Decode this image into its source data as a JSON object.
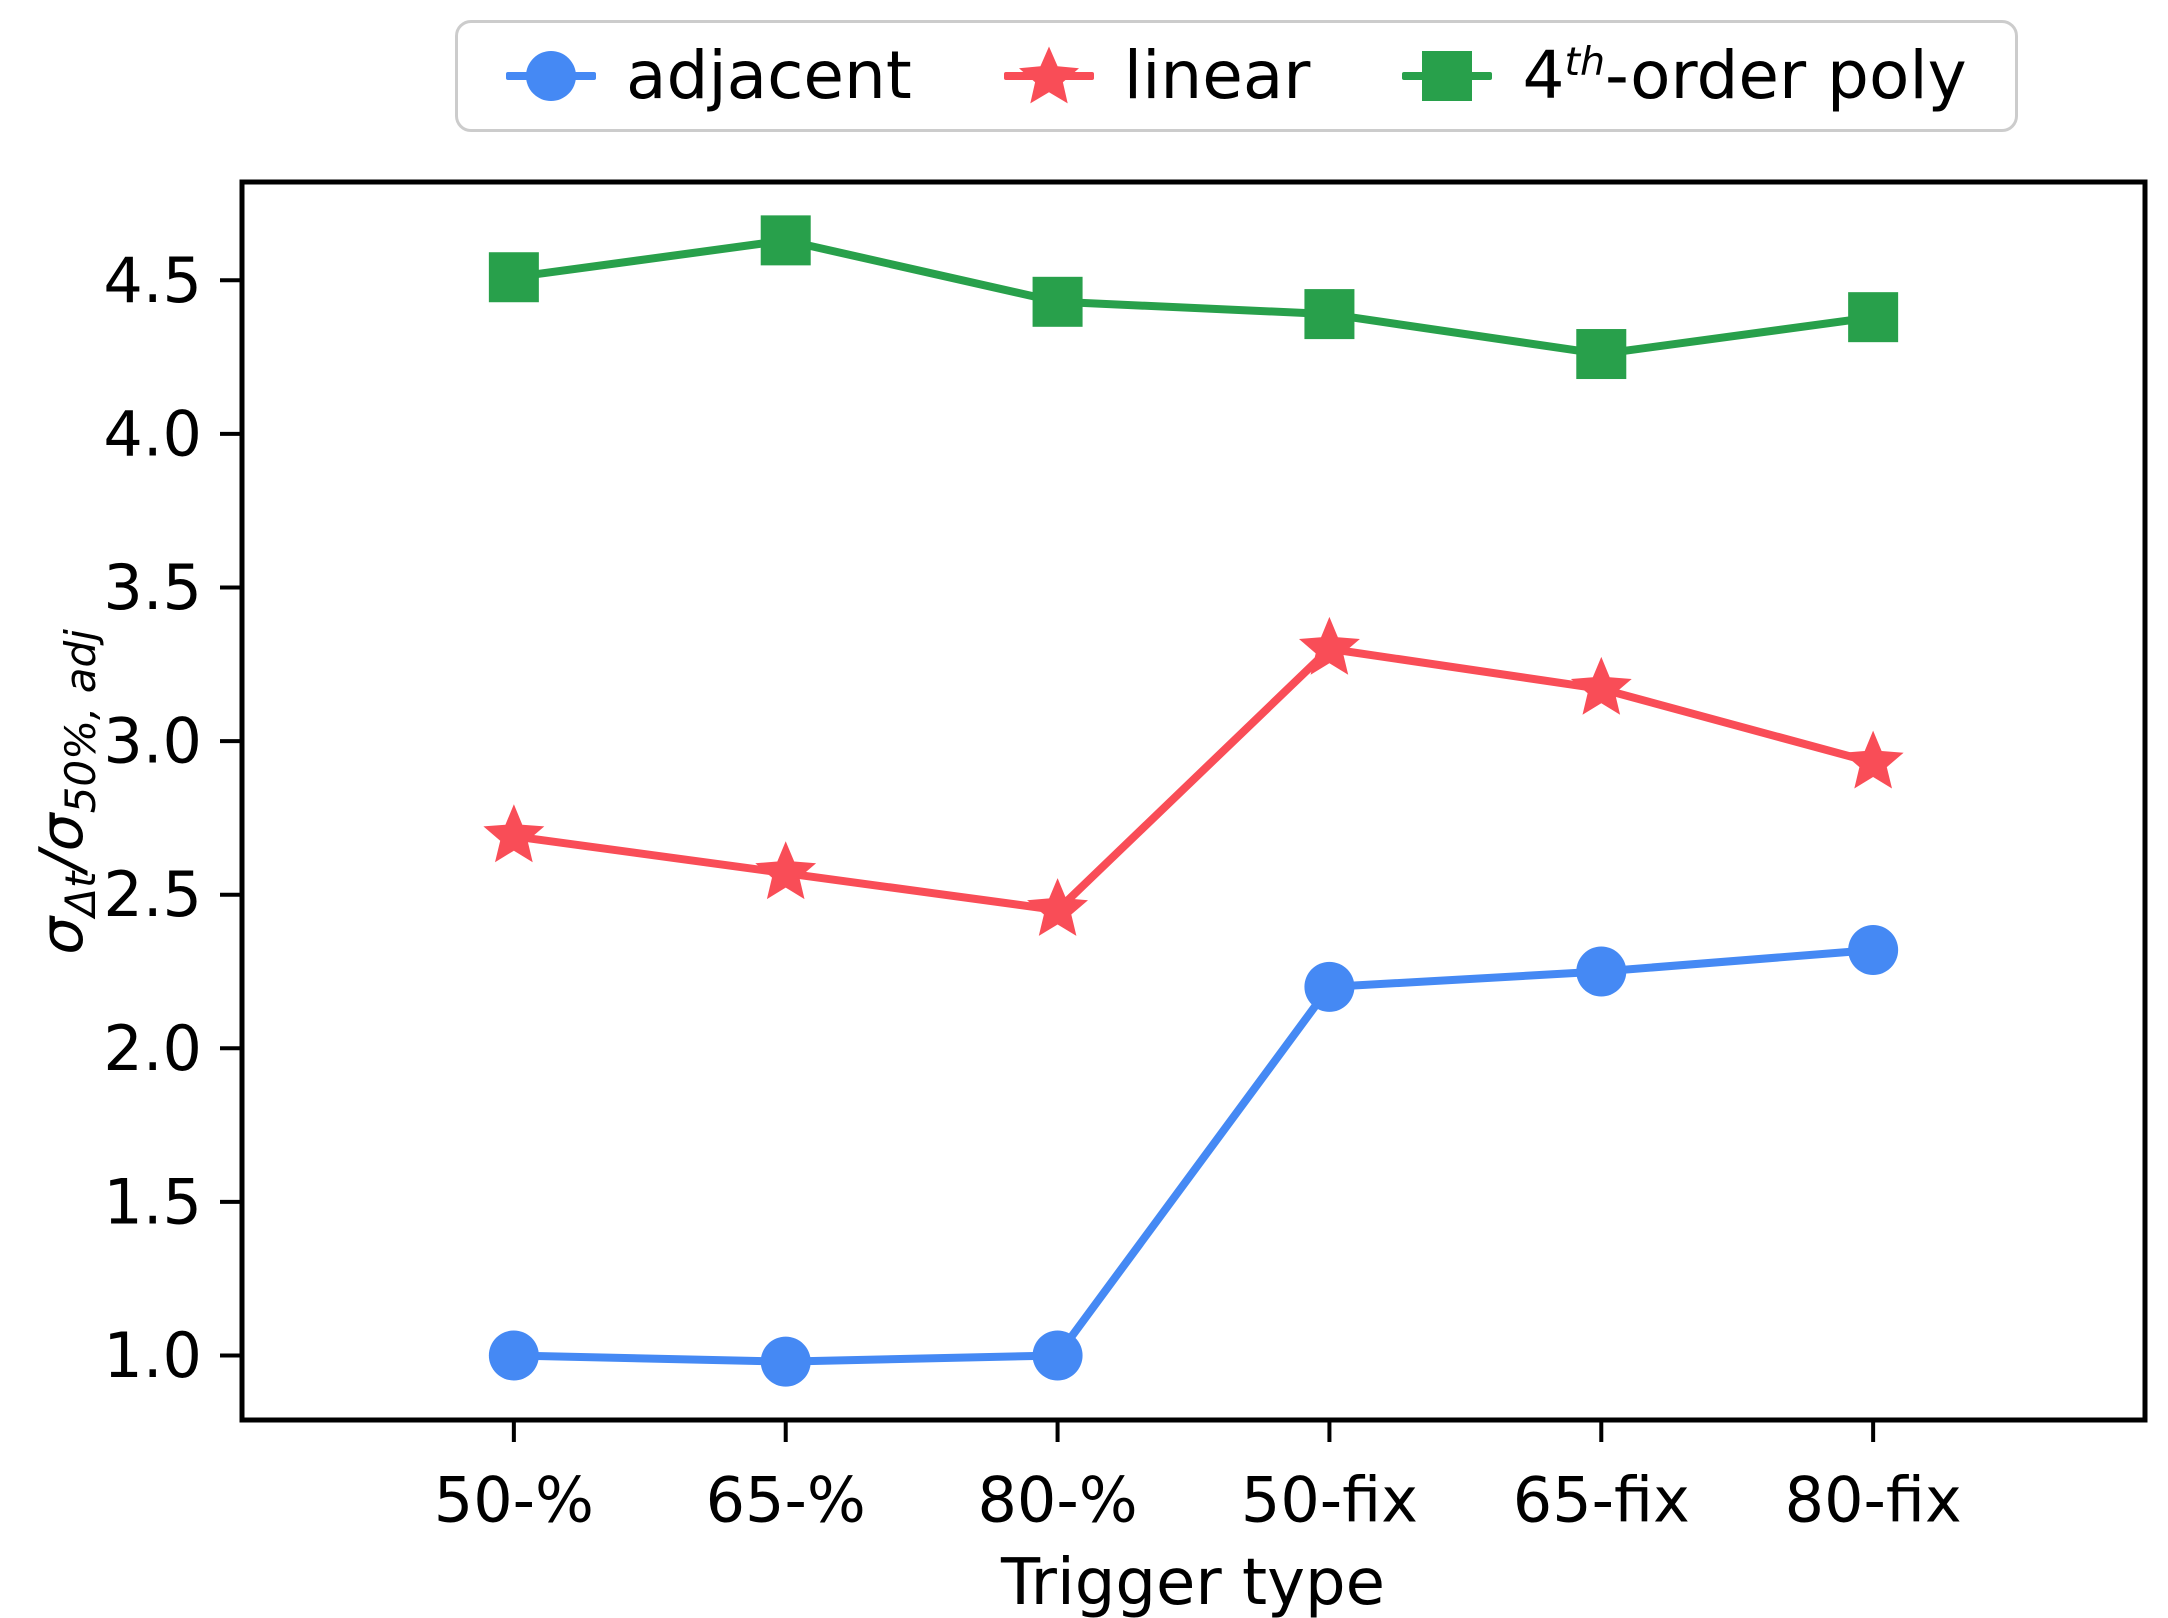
{
  "figure": {
    "background": "#ffffff",
    "frame_color": "#000000",
    "legend": {
      "border_color": "#cccccc",
      "entries": [
        {
          "label": "adjacent",
          "marker": "circle-marker",
          "color": "#4589f4"
        },
        {
          "label": "linear",
          "marker": "star-marker",
          "color": "#f94d57"
        },
        {
          "label_pre": "4",
          "label_sup": "th",
          "label_post": "-order poly",
          "marker": "square-marker",
          "color": "#28a04b"
        }
      ]
    }
  },
  "chart_data": {
    "type": "line",
    "title": "",
    "xlabel": "Trigger type",
    "ylabel": "σ_Δt/σ_50%, adj",
    "ylabel_parts": {
      "sigma1": "σ",
      "sub1": "Δt",
      "slash": "/",
      "sigma2": "σ",
      "sub2": "50%, adj"
    },
    "categories": [
      "50-%",
      "65-%",
      "80-%",
      "50-fix",
      "65-fix",
      "80-fix"
    ],
    "ytick_labels": [
      "1.0",
      "1.5",
      "2.0",
      "2.5",
      "3.0",
      "3.5",
      "4.0",
      "4.5"
    ],
    "ylim": [
      0.79,
      4.82
    ],
    "grid": false,
    "legend_position": "top center, outside axes",
    "series": [
      {
        "name": "adjacent",
        "marker": "circle",
        "color": "#4589f4",
        "values": [
          1.0,
          0.98,
          1.0,
          2.2,
          2.25,
          2.32
        ]
      },
      {
        "name": "linear",
        "marker": "star",
        "color": "#f94d57",
        "values": [
          2.69,
          2.57,
          2.45,
          3.3,
          3.17,
          2.93
        ]
      },
      {
        "name": "4th-order poly",
        "marker": "square",
        "color": "#28a04b",
        "values": [
          4.51,
          4.63,
          4.43,
          4.39,
          4.26,
          4.38
        ]
      }
    ]
  }
}
